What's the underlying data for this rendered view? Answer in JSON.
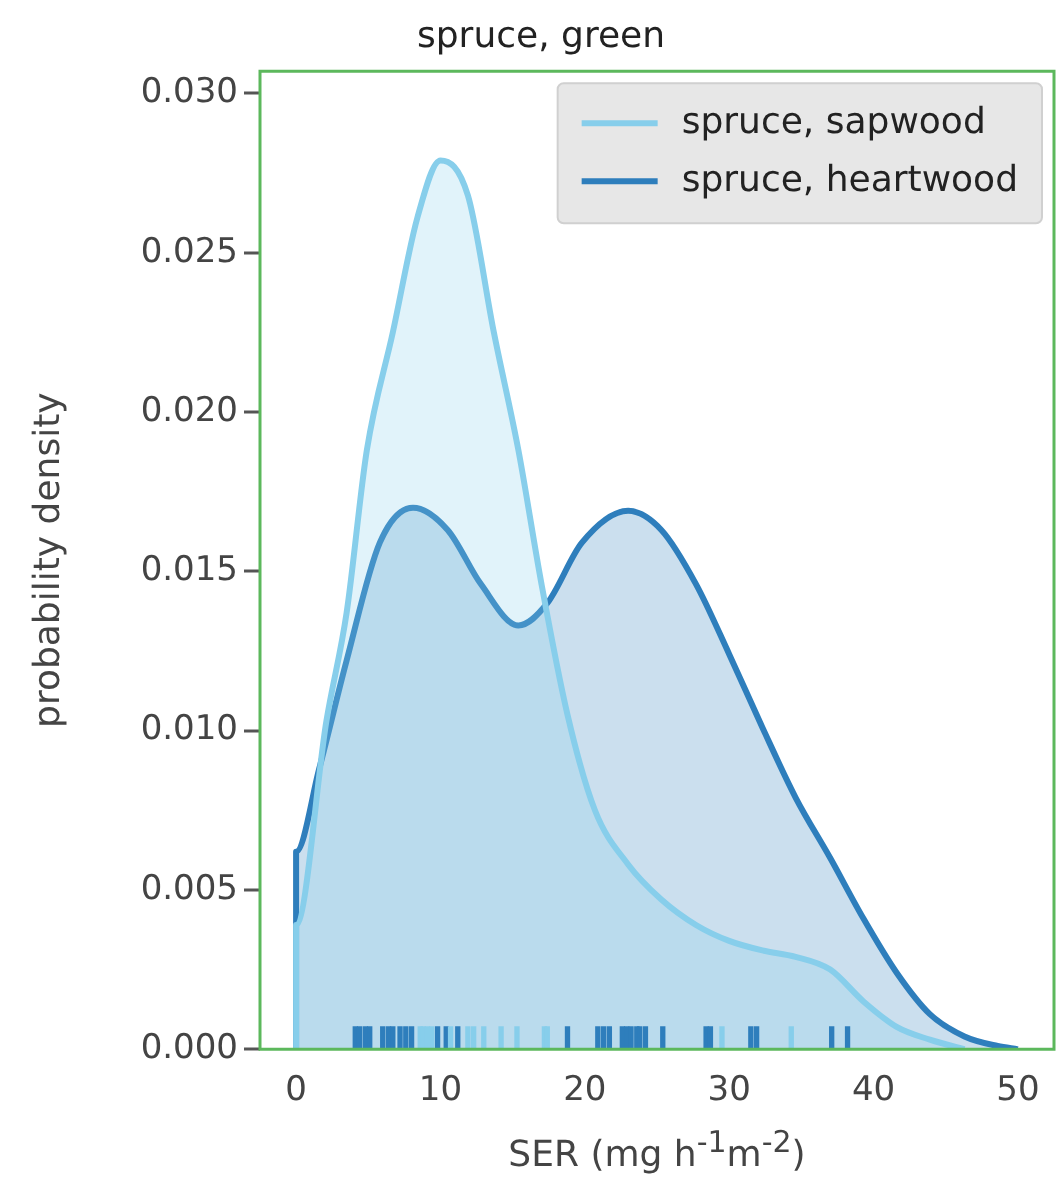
{
  "chart_data": {
    "type": "area",
    "title": "spruce, green",
    "xlabel": "SER (mg h$^{-1}$m$^{-2}$)",
    "ylabel": "probability density",
    "xlim": [
      -2.5,
      52.5
    ],
    "xticks": [
      0,
      10,
      20,
      30,
      40,
      50
    ],
    "ylim": [
      0,
      0.0307
    ],
    "yticks": [
      {
        "value": 0,
        "label": "0.000"
      },
      {
        "value": 0.005,
        "label": "0.005"
      },
      {
        "value": 0.01,
        "label": "0.010"
      },
      {
        "value": 0.015,
        "label": "0.015"
      },
      {
        "value": 0.02,
        "label": "0.020"
      },
      {
        "value": 0.025,
        "label": "0.025"
      },
      {
        "value": 0.03,
        "label": "0.030"
      }
    ],
    "legend": "top right",
    "grid": false,
    "series": [
      {
        "name": "spruce, sapwood",
        "color": "#87ceeb",
        "x": [
          0,
          0,
          2.1,
          3.5,
          4.9,
          6.7,
          8.4,
          10.0,
          11.9,
          13.7,
          15.4,
          17.0,
          18.8,
          20.7,
          23.0,
          25.3,
          27.7,
          30.0,
          32.3,
          34.6,
          37.0,
          39.3,
          41.6,
          43.9,
          46.3
        ],
        "values": [
          0,
          0.0039,
          0.0103,
          0.0137,
          0.0188,
          0.0225,
          0.0261,
          0.0279,
          0.0268,
          0.0225,
          0.0188,
          0.0146,
          0.0105,
          0.0075,
          0.0058,
          0.0047,
          0.0039,
          0.0034,
          0.0031,
          0.0029,
          0.0025,
          0.0015,
          0.0007,
          0.0003,
          0
        ]
      },
      {
        "name": "spruce, heartwood",
        "color": "#2e7ebc",
        "x": [
          0,
          0,
          1.6,
          3.5,
          5.8,
          8.1,
          10.5,
          12.8,
          15.4,
          17.4,
          19.8,
          23.0,
          25.3,
          27.7,
          30.0,
          32.3,
          34.6,
          37.0,
          39.3,
          41.6,
          43.9,
          46.3,
          48.6,
          50
        ],
        "values": [
          0,
          0.0062,
          0.0088,
          0.0122,
          0.0159,
          0.017,
          0.0163,
          0.0146,
          0.0133,
          0.014,
          0.0159,
          0.0169,
          0.0163,
          0.0146,
          0.0124,
          0.0101,
          0.0079,
          0.006,
          0.0041,
          0.0024,
          0.0011,
          0.0004,
          0.0001,
          0
        ]
      },
      {
        "type": "bar",
        "color": "#87ceeb",
        "x": [
          8.6,
          8.8,
          9.1,
          9.4,
          10.7,
          11.9,
          12.3,
          13.0,
          14.2,
          15.3,
          17.2,
          17.4,
          29.5,
          34.3
        ],
        "values": [
          0.0007,
          0.0007,
          0.0007,
          0.0007,
          0.0007,
          0.0007,
          0.0007,
          0.0007,
          0.0007,
          0.0007,
          0.0007,
          0.0007,
          0.0007,
          0.0007
        ]
      },
      {
        "type": "bar",
        "color": "#2e7ebc",
        "x": [
          4.1,
          4.4,
          4.8,
          5.1,
          6.0,
          6.4,
          6.7,
          7.2,
          7.6,
          8.0,
          9.8,
          10.4,
          11.2,
          18.8,
          20.9,
          21.3,
          21.7,
          22.6,
          22.9,
          23.2,
          23.6,
          23.8,
          24.2,
          25.4,
          28.4,
          28.7,
          31.5,
          31.9,
          37.1,
          38.2
        ],
        "values": [
          0.0007,
          0.0007,
          0.0007,
          0.0007,
          0.0007,
          0.0007,
          0.0007,
          0.0007,
          0.0007,
          0.0007,
          0.0007,
          0.0007,
          0.0007,
          0.0007,
          0.0007,
          0.0007,
          0.0007,
          0.0007,
          0.0007,
          0.0007,
          0.0007,
          0.0007,
          0.0007,
          0.0007,
          0.0007,
          0.0007,
          0.0007,
          0.0007,
          0.0007,
          0.0007
        ]
      }
    ]
  }
}
